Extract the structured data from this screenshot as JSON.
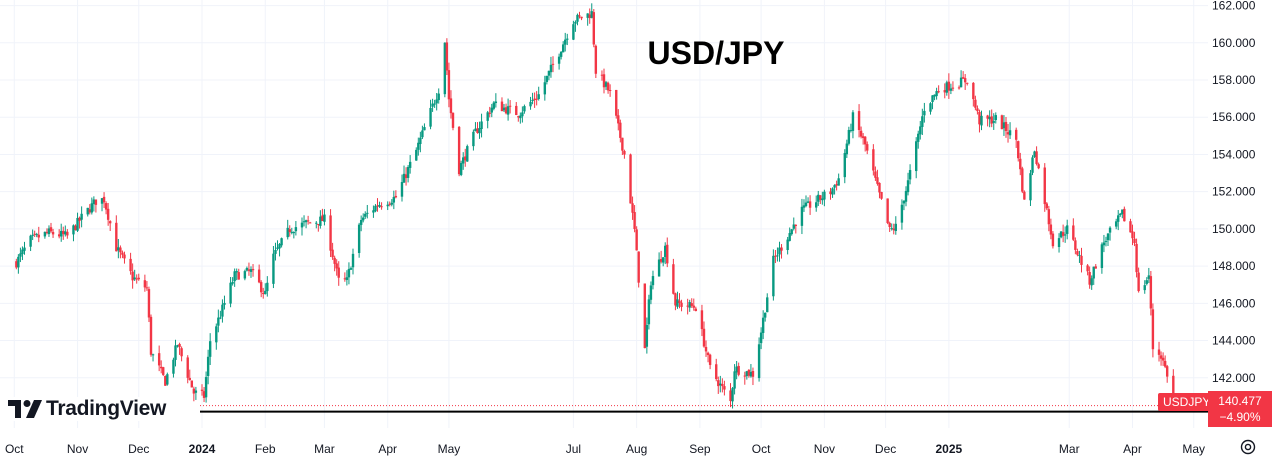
{
  "chart_data": {
    "type": "candlestick",
    "title": "USD/JPY",
    "symbol": "USDJPY",
    "last_price": "140.477",
    "change_pct": "−4.90%",
    "ylim": [
      139.3,
      162.3
    ],
    "y_ticks": [
      "142.000",
      "144.000",
      "146.000",
      "148.000",
      "150.000",
      "152.000",
      "154.000",
      "156.000",
      "158.000",
      "160.000",
      "162.000"
    ],
    "x_tick_labels": [
      "Oct",
      "Nov",
      "Dec",
      "2024",
      "Feb",
      "Mar",
      "Apr",
      "May",
      "Jul",
      "Aug",
      "Sep",
      "Oct",
      "Nov",
      "Dec",
      "2025",
      "Mar",
      "Apr",
      "May"
    ],
    "x_tick_bold": [
      "2024",
      "2025"
    ],
    "support_level": 140.5,
    "price_path": [
      [
        "2023-10-02",
        148.2
      ],
      [
        "2023-10-09",
        149.4
      ],
      [
        "2023-10-18",
        149.8
      ],
      [
        "2023-10-27",
        149.6
      ],
      [
        "2023-11-03",
        150.6
      ],
      [
        "2023-11-10",
        151.5
      ],
      [
        "2023-11-14",
        151.6
      ],
      [
        "2023-11-20",
        149.0
      ],
      [
        "2023-11-28",
        147.4
      ],
      [
        "2023-12-05",
        146.8
      ],
      [
        "2023-12-07",
        143.4
      ],
      [
        "2023-12-14",
        141.8
      ],
      [
        "2023-12-20",
        143.8
      ],
      [
        "2023-12-28",
        141.2
      ],
      [
        "2024-01-02",
        141.0
      ],
      [
        "2024-01-05",
        144.0
      ],
      [
        "2024-01-10",
        145.4
      ],
      [
        "2024-01-17",
        147.5
      ],
      [
        "2024-01-25",
        147.7
      ],
      [
        "2024-02-01",
        146.5
      ],
      [
        "2024-02-05",
        148.5
      ],
      [
        "2024-02-13",
        150.0
      ],
      [
        "2024-02-21",
        150.3
      ],
      [
        "2024-03-01",
        150.5
      ],
      [
        "2024-03-08",
        147.2
      ],
      [
        "2024-03-12",
        147.2
      ],
      [
        "2024-03-19",
        150.5
      ],
      [
        "2024-03-27",
        151.3
      ],
      [
        "2024-04-05",
        151.7
      ],
      [
        "2024-04-15",
        154.2
      ],
      [
        "2024-04-26",
        157.5
      ],
      [
        "2024-04-29",
        160.1
      ],
      [
        "2024-05-01",
        157.0
      ],
      [
        "2024-05-06",
        153.2
      ],
      [
        "2024-05-14",
        155.2
      ],
      [
        "2024-05-23",
        156.7
      ],
      [
        "2024-06-04",
        156.2
      ],
      [
        "2024-06-14",
        157.2
      ],
      [
        "2024-06-24",
        159.5
      ],
      [
        "2024-07-01",
        161.2
      ],
      [
        "2024-07-10",
        161.6
      ],
      [
        "2024-07-12",
        158.5
      ],
      [
        "2024-07-19",
        157.3
      ],
      [
        "2024-07-26",
        154.0
      ],
      [
        "2024-07-31",
        149.9
      ],
      [
        "2024-08-05",
        143.5
      ],
      [
        "2024-08-08",
        147.2
      ],
      [
        "2024-08-15",
        149.0
      ],
      [
        "2024-08-20",
        146.0
      ],
      [
        "2024-08-30",
        145.8
      ],
      [
        "2024-09-06",
        142.5
      ],
      [
        "2024-09-16",
        140.7
      ],
      [
        "2024-09-18",
        142.5
      ],
      [
        "2024-09-27",
        142.2
      ],
      [
        "2024-10-01",
        144.5
      ],
      [
        "2024-10-07",
        148.3
      ],
      [
        "2024-10-15",
        149.8
      ],
      [
        "2024-10-21",
        151.0
      ],
      [
        "2024-11-04",
        152.0
      ],
      [
        "2024-11-08",
        152.7
      ],
      [
        "2024-11-15",
        156.0
      ],
      [
        "2024-11-21",
        154.5
      ],
      [
        "2024-12-03",
        149.9
      ],
      [
        "2024-12-06",
        150.1
      ],
      [
        "2024-12-12",
        152.5
      ],
      [
        "2024-12-20",
        156.5
      ],
      [
        "2024-12-27",
        157.5
      ],
      [
        "2025-01-10",
        158.0
      ],
      [
        "2025-01-16",
        155.8
      ],
      [
        "2025-01-24",
        155.9
      ],
      [
        "2025-02-03",
        154.8
      ],
      [
        "2025-02-07",
        151.4
      ],
      [
        "2025-02-12",
        154.3
      ],
      [
        "2025-02-21",
        149.3
      ],
      [
        "2025-02-28",
        150.0
      ],
      [
        "2025-03-11",
        147.2
      ],
      [
        "2025-03-18",
        149.3
      ],
      [
        "2025-03-27",
        150.8
      ],
      [
        "2025-04-02",
        149.3
      ],
      [
        "2025-04-04",
        146.5
      ],
      [
        "2025-04-09",
        147.5
      ],
      [
        "2025-04-11",
        143.6
      ],
      [
        "2025-04-15",
        143.2
      ],
      [
        "2025-04-18",
        142.2
      ],
      [
        "2025-04-21",
        140.5
      ]
    ]
  },
  "branding": {
    "name": "TradingView"
  },
  "settings_icon": "gear-icon"
}
